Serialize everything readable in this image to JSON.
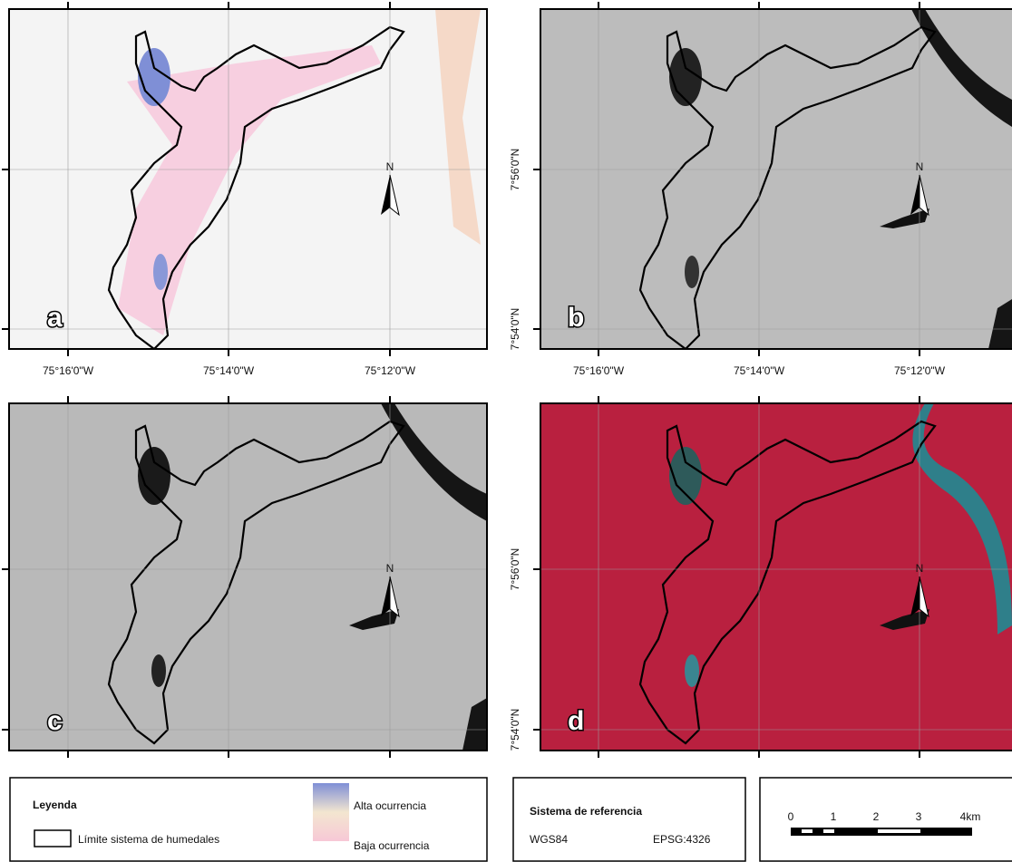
{
  "panels": [
    {
      "label": "a",
      "north": "N"
    },
    {
      "label": "b",
      "north": "N"
    },
    {
      "label": "c",
      "north": "N"
    },
    {
      "label": "d",
      "north": "N"
    }
  ],
  "lon_labels": [
    "75°16'0\"W",
    "75°14'0\"W",
    "75°12'0\"W"
  ],
  "lat_labels": [
    "7°56'0\"N",
    "7°54'0\"N"
  ],
  "legend": {
    "title": "Leyenda",
    "boundary": "Límite sistema de humedales",
    "high": "Alta ocurrencia",
    "low": "Baja ocurrencia"
  },
  "reference": {
    "title": "Sistema de referencia",
    "datum": "WGS84",
    "code": "EPSG:4326"
  },
  "scale": {
    "ticks": [
      "0",
      "1",
      "2",
      "3",
      "4km"
    ]
  }
}
